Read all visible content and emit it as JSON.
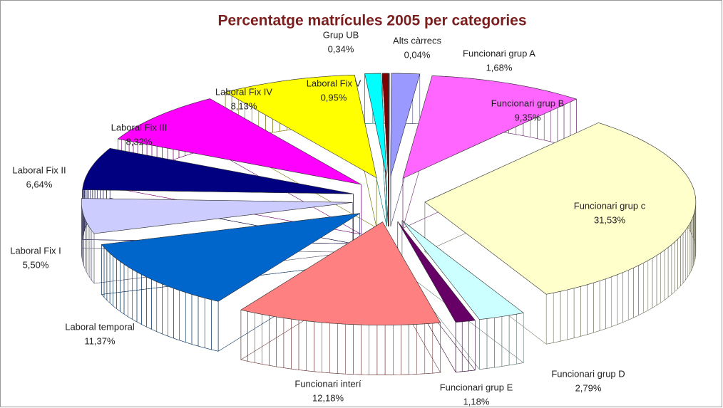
{
  "chart_data": {
    "type": "pie",
    "title": "Percentatge matrícules 2005 per categories",
    "categories": [
      "Alts càrrecs",
      "Funcionari grup A",
      "Funcionari grup B",
      "Funcionari grup c",
      "Funcionari grup D",
      "Funcionari grup E",
      "Funcionari interí",
      "Laboral temporal",
      "Laboral Fix I",
      "Laboral Fix II",
      "Laboral Fix III",
      "Laboral Fix IV",
      "Laboral Fix V",
      "Grup UB"
    ],
    "values": [
      0.04,
      1.68,
      9.35,
      31.53,
      2.79,
      1.18,
      12.18,
      11.37,
      5.5,
      6.64,
      8.32,
      8.13,
      0.95,
      0.34
    ],
    "value_labels": [
      "0,04%",
      "1,68%",
      "9,35%",
      "31,53%",
      "2,79%",
      "1,18%",
      "12,18%",
      "11,37%",
      "5,50%",
      "6,64%",
      "8,32%",
      "8,13%",
      "0,95%",
      "0,34%"
    ],
    "colors": [
      "#993366",
      "#9999ff",
      "#ff66ff",
      "#ffffcc",
      "#ccffff",
      "#660066",
      "#ff8080",
      "#0066cc",
      "#ccccff",
      "#000080",
      "#ff00ff",
      "#ffff00",
      "#00ffff",
      "#800000"
    ]
  }
}
